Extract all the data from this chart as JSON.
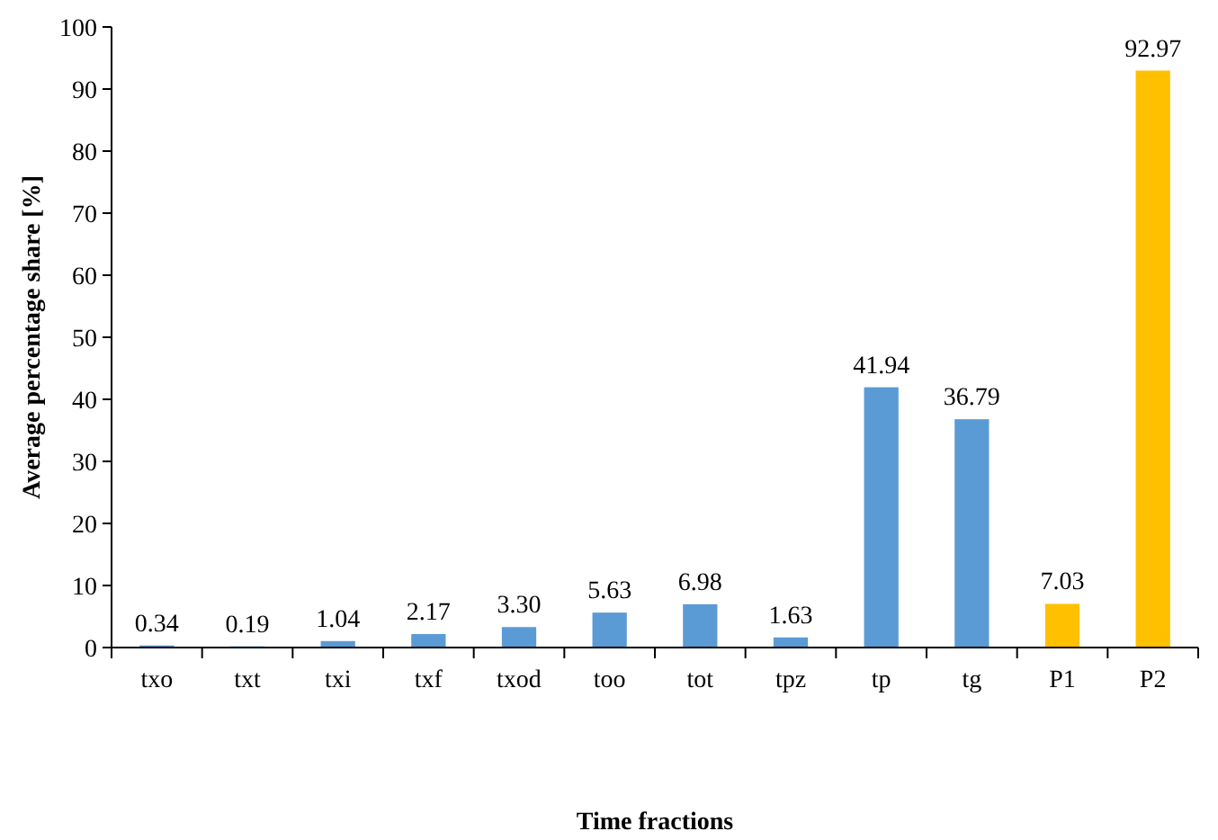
{
  "chart_data": {
    "type": "bar",
    "xlabel": "Time fractions",
    "ylabel": "Average percentage share [%]",
    "categories": [
      "txo",
      "txt",
      "txi",
      "txf",
      "txod",
      "too",
      "tot",
      "tpz",
      "tp",
      "tg",
      "P1",
      "P2"
    ],
    "values": [
      0.34,
      0.19,
      1.04,
      2.17,
      3.3,
      5.63,
      6.98,
      1.63,
      41.94,
      36.79,
      7.03,
      92.97
    ],
    "value_labels": [
      "0.34",
      "0.19",
      "1.04",
      "2.17",
      "3.30",
      "5.63",
      "6.98",
      "1.63",
      "41.94",
      "36.79",
      "7.03",
      "92.97"
    ],
    "colors": [
      "#5b9bd5",
      "#5b9bd5",
      "#5b9bd5",
      "#5b9bd5",
      "#5b9bd5",
      "#5b9bd5",
      "#5b9bd5",
      "#5b9bd5",
      "#5b9bd5",
      "#5b9bd5",
      "#ffc000",
      "#ffc000"
    ],
    "ylim": [
      0,
      100
    ],
    "yticks": [
      0,
      10,
      20,
      30,
      40,
      50,
      60,
      70,
      80,
      90,
      100
    ],
    "grid": false
  }
}
